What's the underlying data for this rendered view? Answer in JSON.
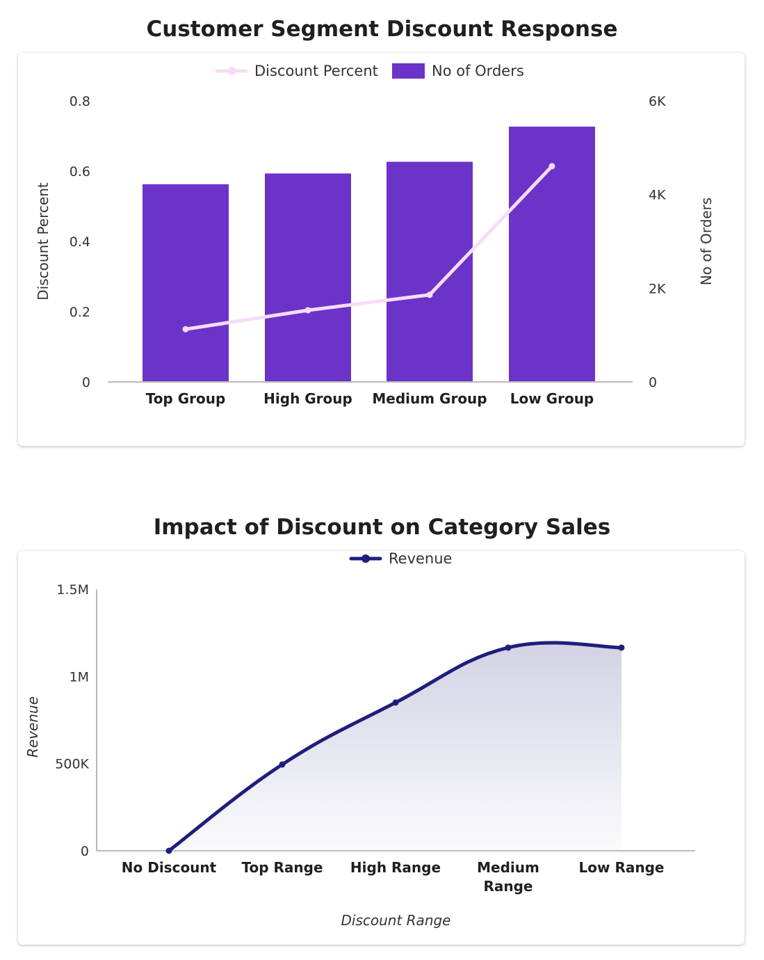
{
  "charts": [
    {
      "title": "Customer Segment Discount Response",
      "legend": [
        {
          "label": "Discount Percent",
          "color": "#f7dcf7"
        },
        {
          "label": "No of Orders",
          "color": "#6c33c9"
        }
      ],
      "left_axis_title": "Discount Percent",
      "right_axis_title": "No of Orders",
      "left_ticks": [
        "0",
        "0.2",
        "0.4",
        "0.6",
        "0.8"
      ],
      "right_ticks": [
        "0",
        "2K",
        "4K",
        "6K"
      ]
    },
    {
      "title": "Impact of Discount on Category Sales",
      "legend": [
        {
          "label": "Revenue",
          "color": "#1f1f7a"
        }
      ],
      "y_axis_title": "Revenue",
      "x_axis_title": "Discount Range",
      "y_ticks": [
        "0",
        "500K",
        "1M",
        "1.5M"
      ]
    }
  ],
  "chart_data": [
    {
      "type": "bar",
      "title": "Customer Segment Discount Response",
      "categories": [
        "Top Group",
        "High Group",
        "Medium Group",
        "Low Group"
      ],
      "series": [
        {
          "name": "No of Orders",
          "type": "bar",
          "axis": "right",
          "color": "#6c33c9",
          "values": [
            4220,
            4450,
            4700,
            5450
          ]
        },
        {
          "name": "Discount Percent",
          "type": "line",
          "axis": "left",
          "color": "#f7dcf7",
          "values": [
            0.15,
            0.204,
            0.248,
            0.614
          ]
        }
      ],
      "ylabel_left": "Discount Percent",
      "ylabel_right": "No of Orders",
      "ylim_left": [
        0,
        0.8
      ],
      "ylim_right": [
        0,
        6000
      ],
      "legend_position": "top"
    },
    {
      "type": "area",
      "title": "Impact of Discount on Category Sales",
      "categories": [
        "No Discount",
        "Top Range",
        "High Range",
        "Medium Range",
        "Low Range"
      ],
      "series": [
        {
          "name": "Revenue",
          "color": "#1f1f7a",
          "values": [
            0,
            495000,
            850000,
            1165000,
            1165000
          ]
        }
      ],
      "xlabel": "Discount Range",
      "ylabel": "Revenue",
      "ylim": [
        0,
        1500000
      ],
      "legend_position": "top"
    }
  ]
}
